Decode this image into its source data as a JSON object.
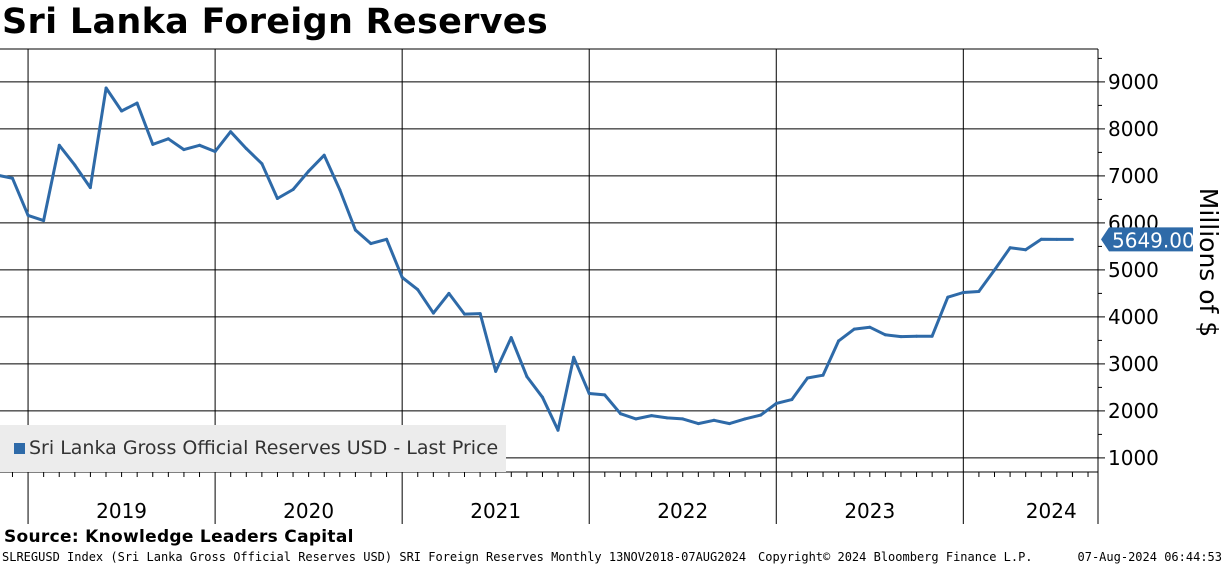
{
  "header": {
    "title": "Sri Lanka Foreign Reserves"
  },
  "footer": {
    "source": "Source: Knowledge Leaders Capital",
    "index_info": "SLREGUSD Index (Sri Lanka Gross Official Reserves USD) SRI Foreign Reserves  Monthly 13NOV2018-07AUG2024",
    "copyright": "Copyright© 2024 Bloomberg Finance L.P.",
    "timestamp": "07-Aug-2024 06:44:53"
  },
  "colors": {
    "series": "#2e6aa8",
    "last_price_box": "#2e6aa8",
    "legend_bg": "#ececec",
    "grid": "#000000"
  },
  "chart_data": {
    "type": "line",
    "title": "Sri Lanka Foreign Reserves",
    "ylabel": "Millions of $",
    "xlabel": "",
    "ylim": [
      700,
      9700
    ],
    "yticks": [
      1000,
      2000,
      3000,
      4000,
      5000,
      6000,
      7000,
      8000,
      9000
    ],
    "ytick_labels": [
      "1000",
      "2000",
      "3000",
      "4000",
      "5000",
      "6000",
      "7000",
      "8000",
      "9000"
    ],
    "x_range": [
      2018.85,
      2024.72
    ],
    "year_boundaries": [
      2019,
      2020,
      2021,
      2022,
      2023,
      2024
    ],
    "year_labels": [
      {
        "label": "2019",
        "pos": 2019.5
      },
      {
        "label": "2020",
        "pos": 2020.5
      },
      {
        "label": "2021",
        "pos": 2021.5
      },
      {
        "label": "2022",
        "pos": 2022.5
      },
      {
        "label": "2023",
        "pos": 2023.5
      },
      {
        "label": "2024",
        "pos": 2024.47
      }
    ],
    "grid": true,
    "legend": {
      "label": "Sri Lanka Gross Official Reserves USD - Last Price",
      "position": "bottom-left"
    },
    "last_price": {
      "value": 5649.0,
      "label": "5649.00"
    },
    "series": [
      {
        "name": "Sri Lanka Gross Official Reserves USD - Last Price",
        "x": [
          2018.833,
          2018.917,
          2019.0,
          2019.083,
          2019.167,
          2019.25,
          2019.333,
          2019.417,
          2019.5,
          2019.583,
          2019.667,
          2019.75,
          2019.833,
          2019.917,
          2020.0,
          2020.083,
          2020.167,
          2020.25,
          2020.333,
          2020.417,
          2020.5,
          2020.583,
          2020.667,
          2020.75,
          2020.833,
          2020.917,
          2021.0,
          2021.083,
          2021.167,
          2021.25,
          2021.333,
          2021.417,
          2021.5,
          2021.583,
          2021.667,
          2021.75,
          2021.833,
          2021.917,
          2022.0,
          2022.083,
          2022.167,
          2022.25,
          2022.333,
          2022.417,
          2022.5,
          2022.583,
          2022.667,
          2022.75,
          2022.833,
          2022.917,
          2023.0,
          2023.083,
          2023.167,
          2023.25,
          2023.333,
          2023.417,
          2023.5,
          2023.583,
          2023.667,
          2023.75,
          2023.833,
          2023.917,
          2024.0,
          2024.083,
          2024.167,
          2024.25,
          2024.333,
          2024.417,
          2024.5,
          2024.583
        ],
        "values": [
          7020,
          6950,
          6160,
          6050,
          7650,
          7230,
          6750,
          8870,
          8380,
          8550,
          7670,
          7790,
          7560,
          7650,
          7520,
          7940,
          7580,
          7260,
          6520,
          6710,
          7100,
          7440,
          6700,
          5850,
          5560,
          5650,
          4840,
          4580,
          4080,
          4500,
          4060,
          4070,
          2840,
          3560,
          2730,
          2290,
          1590,
          3140,
          2370,
          2340,
          1940,
          1830,
          1900,
          1850,
          1830,
          1730,
          1800,
          1730,
          1830,
          1910,
          2160,
          2240,
          2700,
          2760,
          3490,
          3740,
          3780,
          3620,
          3580,
          3590,
          3590,
          4420,
          4520,
          4540,
          5000,
          5470,
          5430,
          5650,
          5649,
          5649
        ]
      }
    ]
  }
}
